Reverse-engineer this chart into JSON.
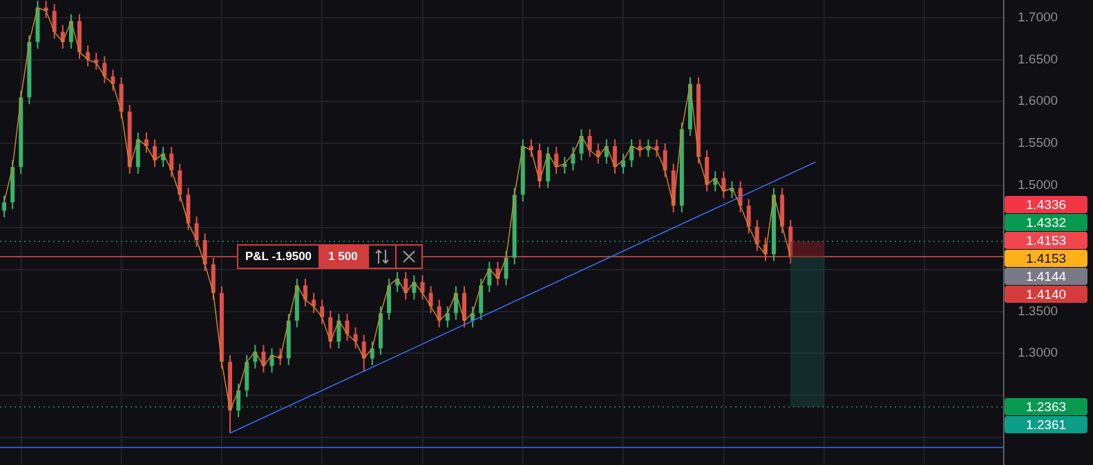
{
  "chart_data": {
    "type": "candlestick",
    "categories": [
      null,
      null,
      null,
      null,
      null,
      null,
      null,
      null,
      null,
      null,
      null,
      null,
      null,
      null,
      null,
      null,
      null,
      null,
      null,
      null,
      null,
      null,
      null,
      null,
      null,
      null,
      null,
      null,
      null,
      null,
      null,
      null,
      null,
      null,
      null,
      null,
      null,
      null,
      null,
      null,
      null,
      null,
      null,
      null,
      null,
      null,
      null,
      null,
      null,
      null,
      null,
      null,
      null,
      null,
      null,
      null,
      null,
      null,
      null,
      null,
      null,
      null,
      null,
      null,
      null,
      null,
      null,
      null,
      null,
      null,
      null,
      null,
      null,
      null,
      null,
      null,
      null,
      null,
      null,
      null,
      null,
      null,
      null,
      null,
      null,
      null,
      null,
      null,
      null,
      null,
      null,
      null,
      null,
      null,
      null,
      null,
      null,
      null,
      null,
      null,
      null,
      null,
      null,
      null,
      null,
      null,
      null,
      null,
      null,
      null,
      null,
      null,
      null,
      null,
      null,
      null,
      null,
      null,
      null,
      null
    ],
    "ohlc": [
      [
        1.47,
        1.488,
        1.462,
        1.48
      ],
      [
        1.48,
        1.53,
        1.472,
        1.522
      ],
      [
        1.522,
        1.613,
        1.514,
        1.605
      ],
      [
        1.605,
        1.679,
        1.597,
        1.671
      ],
      [
        1.671,
        1.72,
        1.663,
        1.712
      ],
      [
        1.712,
        1.72,
        1.7,
        1.708
      ],
      [
        1.708,
        1.716,
        1.675,
        1.683
      ],
      [
        1.683,
        1.691,
        1.663,
        1.671
      ],
      [
        1.671,
        1.704,
        1.663,
        1.696
      ],
      [
        1.696,
        1.704,
        1.651,
        1.659
      ],
      [
        1.659,
        1.667,
        1.642,
        1.65
      ],
      [
        1.65,
        1.658,
        1.638,
        1.646
      ],
      [
        1.646,
        1.654,
        1.622,
        1.63
      ],
      [
        1.63,
        1.638,
        1.613,
        1.621
      ],
      [
        1.621,
        1.629,
        1.58,
        1.588
      ],
      [
        1.588,
        1.596,
        1.514,
        1.522
      ],
      [
        1.522,
        1.563,
        1.514,
        1.555
      ],
      [
        1.555,
        1.563,
        1.539,
        1.547
      ],
      [
        1.547,
        1.555,
        1.522,
        1.53
      ],
      [
        1.53,
        1.546,
        1.522,
        1.538
      ],
      [
        1.538,
        1.546,
        1.51,
        1.518
      ],
      [
        1.518,
        1.526,
        1.481,
        1.489
      ],
      [
        1.489,
        1.497,
        1.447,
        1.455
      ],
      [
        1.455,
        1.463,
        1.427,
        1.435
      ],
      [
        1.435,
        1.443,
        1.398,
        1.406
      ],
      [
        1.406,
        1.414,
        1.364,
        1.372
      ],
      [
        1.372,
        1.38,
        1.282,
        1.29
      ],
      [
        1.29,
        1.298,
        1.205,
        1.232
      ],
      [
        1.232,
        1.264,
        1.224,
        1.256
      ],
      [
        1.256,
        1.298,
        1.248,
        1.29
      ],
      [
        1.29,
        1.31,
        1.282,
        1.302
      ],
      [
        1.302,
        1.31,
        1.277,
        1.285
      ],
      [
        1.285,
        1.306,
        1.277,
        1.298
      ],
      [
        1.298,
        1.306,
        1.286,
        1.294
      ],
      [
        1.294,
        1.347,
        1.286,
        1.339
      ],
      [
        1.339,
        1.389,
        1.331,
        1.381
      ],
      [
        1.381,
        1.389,
        1.356,
        1.364
      ],
      [
        1.364,
        1.372,
        1.348,
        1.356
      ],
      [
        1.356,
        1.364,
        1.335,
        1.343
      ],
      [
        1.343,
        1.351,
        1.306,
        1.314
      ],
      [
        1.314,
        1.347,
        1.306,
        1.339
      ],
      [
        1.339,
        1.347,
        1.315,
        1.323
      ],
      [
        1.323,
        1.331,
        1.306,
        1.314
      ],
      [
        1.314,
        1.322,
        1.278,
        1.294
      ],
      [
        1.294,
        1.314,
        1.286,
        1.306
      ],
      [
        1.306,
        1.356,
        1.298,
        1.348
      ],
      [
        1.348,
        1.389,
        1.34,
        1.381
      ],
      [
        1.381,
        1.397,
        1.373,
        1.389
      ],
      [
        1.389,
        1.397,
        1.364,
        1.372
      ],
      [
        1.372,
        1.393,
        1.364,
        1.385
      ],
      [
        1.385,
        1.393,
        1.364,
        1.372
      ],
      [
        1.372,
        1.38,
        1.348,
        1.356
      ],
      [
        1.356,
        1.364,
        1.331,
        1.339
      ],
      [
        1.339,
        1.356,
        1.331,
        1.348
      ],
      [
        1.348,
        1.38,
        1.34,
        1.372
      ],
      [
        1.372,
        1.38,
        1.331,
        1.339
      ],
      [
        1.339,
        1.356,
        1.331,
        1.348
      ],
      [
        1.348,
        1.389,
        1.34,
        1.381
      ],
      [
        1.381,
        1.409,
        1.373,
        1.401
      ],
      [
        1.401,
        1.409,
        1.381,
        1.389
      ],
      [
        1.389,
        1.422,
        1.381,
        1.414
      ],
      [
        1.414,
        1.497,
        1.406,
        1.489
      ],
      [
        1.489,
        1.555,
        1.481,
        1.547
      ],
      [
        1.547,
        1.555,
        1.534,
        1.542
      ],
      [
        1.542,
        1.55,
        1.497,
        1.505
      ],
      [
        1.505,
        1.546,
        1.497,
        1.538
      ],
      [
        1.538,
        1.546,
        1.514,
        1.522
      ],
      [
        1.522,
        1.534,
        1.514,
        1.526
      ],
      [
        1.526,
        1.546,
        1.518,
        1.538
      ],
      [
        1.538,
        1.567,
        1.53,
        1.559
      ],
      [
        1.559,
        1.567,
        1.534,
        1.542
      ],
      [
        1.542,
        1.55,
        1.526,
        1.534
      ],
      [
        1.534,
        1.555,
        1.526,
        1.547
      ],
      [
        1.547,
        1.555,
        1.514,
        1.522
      ],
      [
        1.522,
        1.538,
        1.514,
        1.53
      ],
      [
        1.53,
        1.555,
        1.522,
        1.547
      ],
      [
        1.547,
        1.555,
        1.534,
        1.542
      ],
      [
        1.542,
        1.555,
        1.534,
        1.547
      ],
      [
        1.547,
        1.555,
        1.534,
        1.542
      ],
      [
        1.542,
        1.55,
        1.51,
        1.518
      ],
      [
        1.518,
        1.526,
        1.468,
        1.476
      ],
      [
        1.476,
        1.575,
        1.468,
        1.567
      ],
      [
        1.567,
        1.629,
        1.559,
        1.621
      ],
      [
        1.621,
        1.629,
        1.526,
        1.534
      ],
      [
        1.534,
        1.542,
        1.493,
        1.501
      ],
      [
        1.501,
        1.517,
        1.493,
        1.509
      ],
      [
        1.509,
        1.517,
        1.485,
        1.493
      ],
      [
        1.493,
        1.505,
        1.485,
        1.497
      ],
      [
        1.497,
        1.505,
        1.468,
        1.476
      ],
      [
        1.476,
        1.484,
        1.443,
        1.451
      ],
      [
        1.451,
        1.459,
        1.422,
        1.43
      ],
      [
        1.43,
        1.438,
        1.41,
        1.418
      ],
      [
        1.418,
        1.497,
        1.41,
        1.489
      ],
      [
        1.489,
        1.497,
        1.443,
        1.451
      ],
      [
        1.451,
        1.459,
        1.407,
        1.415
      ],
      null,
      null,
      null,
      null,
      null,
      null,
      null,
      null,
      null,
      null,
      null,
      null,
      null,
      null,
      null,
      null,
      null,
      null,
      null,
      null,
      null,
      null,
      null,
      null,
      null
    ],
    "series": [
      {
        "type": "line",
        "color": "#c8862a",
        "values": [
          1.48,
          1.522,
          1.605,
          1.671,
          1.712,
          1.708,
          1.683,
          1.671,
          1.696,
          1.659,
          1.65,
          1.646,
          1.63,
          1.621,
          1.588,
          1.522,
          1.555,
          1.547,
          1.53,
          1.538,
          1.518,
          1.489,
          1.455,
          1.435,
          1.406,
          1.372,
          1.29,
          1.232,
          1.256,
          1.29,
          1.302,
          1.285,
          1.298,
          1.294,
          1.339,
          1.381,
          1.364,
          1.356,
          1.343,
          1.314,
          1.339,
          1.323,
          1.314,
          1.294,
          1.306,
          1.348,
          1.381,
          1.389,
          1.372,
          1.385,
          1.372,
          1.356,
          1.339,
          1.348,
          1.372,
          1.339,
          1.348,
          1.381,
          1.401,
          1.389,
          1.414,
          1.489,
          1.547,
          1.542,
          1.505,
          1.538,
          1.522,
          1.526,
          1.538,
          1.559,
          1.542,
          1.534,
          1.547,
          1.522,
          1.53,
          1.547,
          1.542,
          1.547,
          1.542,
          1.518,
          1.476,
          1.567,
          1.621,
          1.534,
          1.501,
          1.509,
          1.493,
          1.497,
          1.476,
          1.451,
          1.43,
          1.418,
          1.489,
          1.451,
          1.415,
          null,
          null,
          null,
          null,
          null,
          null,
          null,
          null,
          null,
          null,
          null,
          null,
          null,
          null,
          null,
          null,
          null,
          null,
          null,
          null,
          null,
          null,
          null,
          null,
          null
        ]
      },
      {
        "type": "line",
        "color": "#3a6ff2",
        "values": [
          null,
          null,
          null,
          null,
          null,
          null,
          null,
          null,
          null,
          null,
          null,
          null,
          null,
          null,
          null,
          null,
          null,
          null,
          null,
          null,
          null,
          null,
          null,
          null,
          null,
          null,
          null,
          1.205,
          null,
          null,
          null,
          null,
          null,
          null,
          null,
          null,
          null,
          null,
          null,
          null,
          null,
          null,
          null,
          null,
          null,
          null,
          null,
          null,
          null,
          null,
          null,
          null,
          null,
          null,
          null,
          null,
          null,
          null,
          null,
          null,
          null,
          null,
          null,
          null,
          null,
          null,
          null,
          null,
          null,
          null,
          null,
          null,
          null,
          null,
          null,
          null,
          null,
          null,
          null,
          null,
          null,
          null,
          null,
          null,
          null,
          null,
          null,
          null,
          null,
          null,
          null,
          null,
          null,
          null,
          null,
          null,
          null,
          1.528,
          null,
          null,
          null,
          null,
          null,
          null,
          null,
          null,
          null,
          null,
          null,
          null,
          null,
          null,
          null,
          null,
          null,
          null,
          null,
          null,
          null,
          null
        ]
      }
    ],
    "ylim": [
      1.167,
      1.721
    ],
    "yticks": [
      {
        "value": 1.2,
        "label": null
      },
      {
        "value": 1.25,
        "label": null
      },
      {
        "value": 1.3,
        "label": "1.3000"
      },
      {
        "value": 1.35,
        "label": "1.3500"
      },
      {
        "value": 1.4,
        "label": null
      },
      {
        "value": 1.45,
        "label": null
      },
      {
        "value": 1.5,
        "label": "1.5000"
      },
      {
        "value": 1.55,
        "label": "1.5500"
      },
      {
        "value": 1.6,
        "label": "1.6000"
      },
      {
        "value": 1.65,
        "label": "1.6500"
      },
      {
        "value": 1.7,
        "label": "1.7000"
      }
    ],
    "tick_labels": "y",
    "grid": true,
    "ref_lines": [
      {
        "axis": "y",
        "value": 1.4336,
        "color": "#1f9d63",
        "line_style": "dotted"
      },
      {
        "axis": "y",
        "value": 1.4153,
        "color": "#e0514a",
        "line_style": "solid"
      },
      {
        "axis": "y",
        "value": 1.2363,
        "color": "#1f9d63",
        "line_style": "dotted"
      },
      {
        "axis": "y",
        "value": 1.188,
        "color": "#3a6ff2",
        "line_style": "solid"
      }
    ],
    "annotations": [
      "P&L -1.9500",
      "1 500",
      "1.4336",
      "1.4332",
      "1.4153",
      "1.4153",
      "1.4144",
      "1.4140",
      "1.2363",
      "1.2361"
    ]
  }
}
